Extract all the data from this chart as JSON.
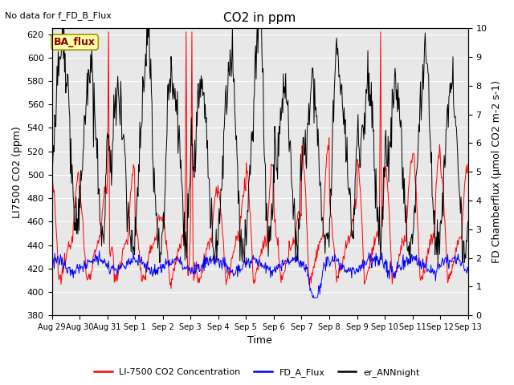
{
  "title": "CO2 in ppm",
  "top_left_text": "No data for f_FD_B_Flux",
  "ba_flux_label": "BA_flux",
  "ylabel_left": "LI7500 CO2 (ppm)",
  "ylabel_right": "FD Chamberflux (µmol CO2 m-2 s-1)",
  "xlabel": "Time",
  "ylim_left": [
    380,
    625
  ],
  "ylim_right": [
    0.0,
    10.0
  ],
  "yticks_left": [
    380,
    400,
    420,
    440,
    460,
    480,
    500,
    520,
    540,
    560,
    580,
    600,
    620
  ],
  "yticks_right": [
    0.0,
    1.0,
    2.0,
    3.0,
    4.0,
    5.0,
    6.0,
    7.0,
    8.0,
    9.0,
    10.0
  ],
  "xtick_labels": [
    "Aug 29",
    "Aug 30",
    "Aug 31",
    "Sep 1",
    "Sep 2",
    "Sep 3",
    "Sep 4",
    "Sep 5",
    "Sep 6",
    "Sep 7",
    "Sep 8",
    "Sep 9",
    "Sep 10",
    "Sep 11",
    "Sep 12",
    "Sep 13"
  ],
  "color_red": "#FF0000",
  "color_blue": "#0000FF",
  "color_black": "#000000",
  "legend_labels": [
    "LI-7500 CO2 Concentration",
    "FD_A_Flux",
    "er_ANNnight"
  ],
  "background_color": "#E8E8E8",
  "title_fontsize": 11,
  "label_fontsize": 9,
  "tick_fontsize": 8,
  "linewidth": 0.7
}
